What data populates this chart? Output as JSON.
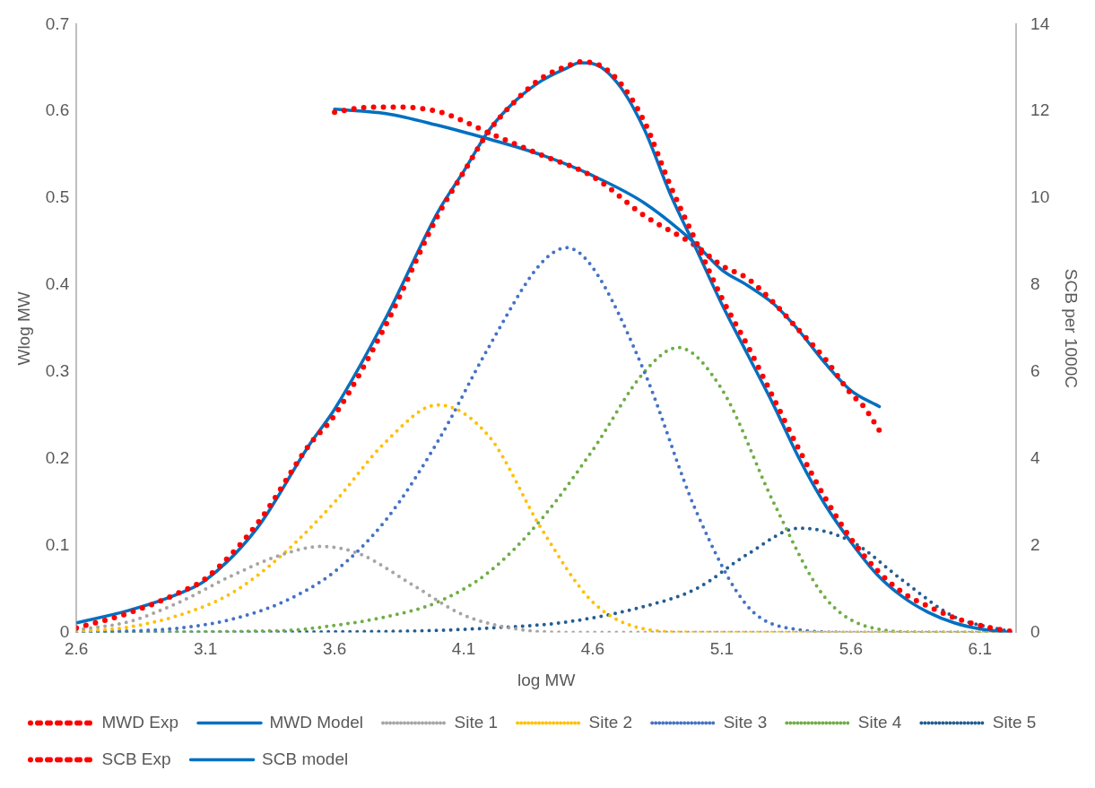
{
  "chart_data": {
    "type": "line",
    "xlabel": "log MW",
    "ylabel": "Wlog MW",
    "y2label": "SCB per 1000C",
    "xlim": [
      2.6,
      6.24
    ],
    "xticks": [
      2.6,
      3.1,
      3.6,
      4.1,
      4.6,
      5.1,
      5.6,
      6.1
    ],
    "ylim": [
      0,
      0.7
    ],
    "yticks": [
      0,
      0.1,
      0.2,
      0.3,
      0.4,
      0.5,
      0.6,
      0.7
    ],
    "y2lim": [
      0,
      14
    ],
    "y2ticks": [
      0,
      2,
      4,
      6,
      8,
      10,
      12,
      14
    ],
    "grid": false,
    "legend": "bottom",
    "marker": "none",
    "series": [
      {
        "name": "MWD Exp",
        "color": "#ff0000",
        "line_style": "dotted",
        "x": [
          2.6,
          2.8,
          3.0,
          3.1,
          3.3,
          3.5,
          3.6,
          3.8,
          4.0,
          4.1,
          4.2,
          4.3,
          4.4,
          4.5,
          4.55,
          4.6,
          4.7,
          4.8,
          4.9,
          5.0,
          5.1,
          5.2,
          5.3,
          5.4,
          5.5,
          5.6,
          5.7,
          5.8,
          5.9,
          6.0,
          6.1,
          6.22
        ],
        "values": [
          0.005,
          0.022,
          0.046,
          0.062,
          0.125,
          0.215,
          0.25,
          0.355,
          0.48,
          0.53,
          0.578,
          0.612,
          0.638,
          0.652,
          0.657,
          0.656,
          0.635,
          0.588,
          0.515,
          0.45,
          0.385,
          0.33,
          0.27,
          0.21,
          0.155,
          0.108,
          0.072,
          0.046,
          0.03,
          0.017,
          0.008,
          0.001
        ]
      },
      {
        "name": "MWD Model",
        "color": "#0070c0",
        "line_style": "solid",
        "x": [
          2.6,
          2.8,
          3.0,
          3.1,
          3.3,
          3.5,
          3.6,
          3.8,
          4.0,
          4.1,
          4.2,
          4.3,
          4.4,
          4.5,
          4.55,
          4.6,
          4.7,
          4.8,
          4.9,
          5.0,
          5.1,
          5.2,
          5.3,
          5.4,
          5.5,
          5.6,
          5.7,
          5.8,
          5.9,
          6.0,
          6.1,
          6.22
        ],
        "values": [
          0.011,
          0.025,
          0.045,
          0.06,
          0.12,
          0.215,
          0.257,
          0.363,
          0.484,
          0.531,
          0.579,
          0.612,
          0.635,
          0.65,
          0.656,
          0.655,
          0.631,
          0.579,
          0.505,
          0.442,
          0.378,
          0.32,
          0.262,
          0.2,
          0.147,
          0.104,
          0.067,
          0.041,
          0.023,
          0.011,
          0.004,
          0.0
        ]
      },
      {
        "name": "Site 1",
        "color": "#a5a5a5",
        "line_style": "dotted",
        "x": [
          2.6,
          2.8,
          3.0,
          3.2,
          3.4,
          3.55,
          3.7,
          3.9,
          4.1,
          4.3,
          4.5,
          6.2
        ],
        "values": [
          0.003,
          0.012,
          0.035,
          0.065,
          0.09,
          0.099,
          0.09,
          0.055,
          0.02,
          0.004,
          0.0,
          0.0
        ]
      },
      {
        "name": "Site 2",
        "color": "#ffc000",
        "line_style": "dotted",
        "x": [
          2.6,
          2.8,
          3.0,
          3.2,
          3.4,
          3.6,
          3.8,
          4.0,
          4.2,
          4.4,
          4.6,
          4.8,
          5.0,
          6.2
        ],
        "values": [
          0.001,
          0.006,
          0.02,
          0.045,
          0.09,
          0.15,
          0.22,
          0.262,
          0.225,
          0.12,
          0.035,
          0.004,
          0.0,
          0.0
        ]
      },
      {
        "name": "Site 3",
        "color": "#4472c4",
        "line_style": "dotted",
        "x": [
          2.6,
          3.0,
          3.2,
          3.4,
          3.6,
          3.8,
          4.0,
          4.2,
          4.4,
          4.5,
          4.6,
          4.8,
          5.0,
          5.2,
          5.4,
          5.6,
          6.2
        ],
        "values": [
          0.0,
          0.005,
          0.015,
          0.035,
          0.07,
          0.13,
          0.22,
          0.33,
          0.425,
          0.443,
          0.42,
          0.3,
          0.14,
          0.03,
          0.003,
          0.0,
          0.0
        ]
      },
      {
        "name": "Site 4",
        "color": "#70ad47",
        "line_style": "dotted",
        "x": [
          2.6,
          3.4,
          3.6,
          3.8,
          4.0,
          4.2,
          4.4,
          4.6,
          4.8,
          4.93,
          5.1,
          5.3,
          5.5,
          5.7,
          5.9,
          6.2
        ],
        "values": [
          0.0,
          0.002,
          0.008,
          0.018,
          0.035,
          0.07,
          0.13,
          0.21,
          0.3,
          0.328,
          0.28,
          0.15,
          0.04,
          0.004,
          0.0,
          0.0
        ]
      },
      {
        "name": "Site 5",
        "color": "#255e91",
        "line_style": "dotted",
        "x": [
          2.6,
          3.8,
          4.2,
          4.5,
          4.8,
          5.0,
          5.2,
          5.4,
          5.6,
          5.8,
          6.0,
          6.2
        ],
        "values": [
          0.0,
          0.001,
          0.005,
          0.012,
          0.03,
          0.05,
          0.09,
          0.12,
          0.105,
          0.06,
          0.018,
          0.002
        ]
      },
      {
        "name": "SCB Exp",
        "color": "#ff0000",
        "line_style": "dotted",
        "axis": "y2",
        "x": [
          3.6,
          3.7,
          3.8,
          4.0,
          4.2,
          4.4,
          4.6,
          4.8,
          5.0,
          5.1,
          5.2,
          5.3,
          5.4,
          5.5,
          5.6,
          5.65,
          5.71
        ],
        "values": [
          11.98,
          12.08,
          12.1,
          12.0,
          11.5,
          11.0,
          10.5,
          9.6,
          8.9,
          8.45,
          8.15,
          7.6,
          6.95,
          6.3,
          5.5,
          5.2,
          4.65
        ]
      },
      {
        "name": "SCB model",
        "color": "#0070c0",
        "line_style": "solid",
        "axis": "y2",
        "x": [
          3.6,
          3.8,
          4.0,
          4.2,
          4.4,
          4.6,
          4.8,
          5.0,
          5.1,
          5.2,
          5.3,
          5.4,
          5.5,
          5.6,
          5.71
        ],
        "values": [
          12.05,
          11.95,
          11.68,
          11.36,
          11.0,
          10.52,
          9.89,
          8.94,
          8.35,
          7.99,
          7.57,
          6.94,
          6.2,
          5.57,
          5.2
        ]
      }
    ]
  }
}
